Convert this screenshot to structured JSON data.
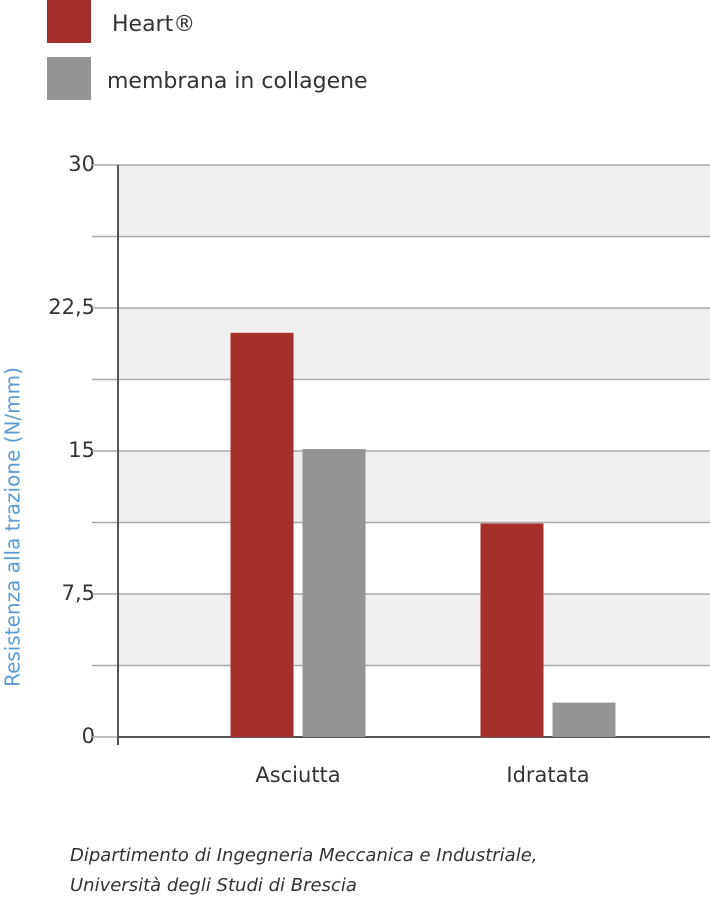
{
  "chart_data": {
    "type": "bar",
    "y_label": "Resistenza alla trazione (N/mm)",
    "categories": [
      "Asciutta",
      "Idratata"
    ],
    "series": [
      {
        "name": "Heart®",
        "color": "#a52f2a",
        "values": [
          21.2,
          11.2
        ]
      },
      {
        "name": "membrana in collagene",
        "color": "#949494",
        "values": [
          15.1,
          1.8
        ]
      }
    ],
    "ylim": [
      0,
      30
    ],
    "yticks": [
      0,
      {
        "value": 7.5,
        "label": "7,5"
      },
      15,
      {
        "value": 22.5,
        "label": "22,5"
      },
      30
    ],
    "minor_yticks": [
      3.75,
      11.25,
      18.75,
      26.25
    ],
    "grid": true,
    "source": [
      "Dipartimento di Ingegneria Meccanica e Industriale,",
      "Università degli Studi di Brescia"
    ]
  }
}
